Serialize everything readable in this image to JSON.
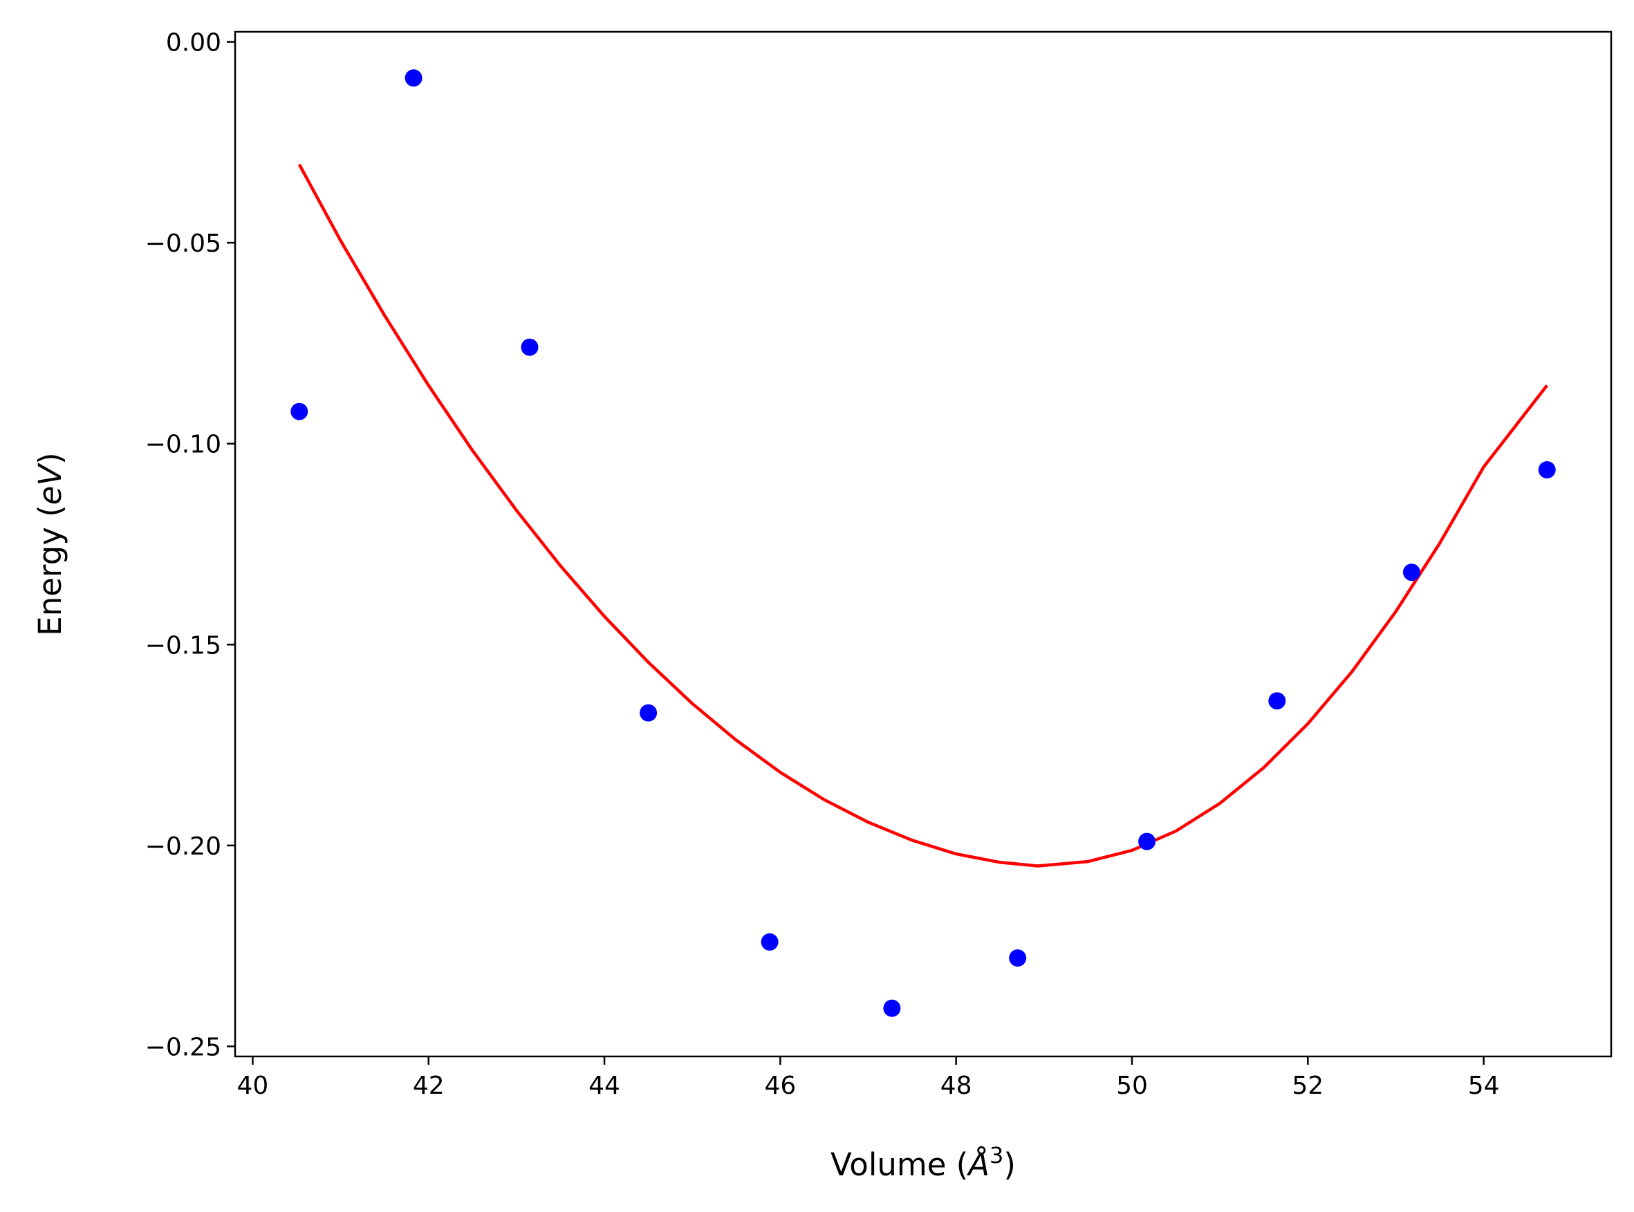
{
  "chart_data": {
    "type": "scatter",
    "title": "",
    "xlabel": {
      "prefix": "Volume (",
      "unit": "Å",
      "exponent": "3",
      "suffix": ")"
    },
    "ylabel": {
      "prefix": "Energy (",
      "unit": "eV",
      "suffix": ")"
    },
    "xlim": [
      39.8,
      55.45
    ],
    "ylim": [
      -0.2525,
      0.0025
    ],
    "xticks": [
      40,
      42,
      44,
      46,
      48,
      50,
      52,
      54
    ],
    "xtick_labels": [
      "40",
      "42",
      "44",
      "46",
      "48",
      "50",
      "52",
      "54"
    ],
    "yticks": [
      0.0,
      -0.05,
      -0.1,
      -0.15,
      -0.2,
      -0.25
    ],
    "ytick_labels": [
      "0.00",
      "−0.05",
      "−0.10",
      "−0.15",
      "−0.20",
      "−0.25"
    ],
    "grid": false,
    "legend": "none",
    "colors": {
      "points": "#0000ff",
      "fit": "#ff0000"
    },
    "series": [
      {
        "kind": "scatter",
        "x": [
          40.53,
          41.83,
          43.15,
          44.5,
          45.88,
          47.27,
          48.7,
          50.17,
          51.65,
          53.18,
          54.72
        ],
        "y": [
          -0.092,
          -0.009,
          -0.076,
          -0.167,
          -0.224,
          -0.2405,
          -0.228,
          -0.199,
          -0.164,
          -0.132,
          -0.1065
        ]
      },
      {
        "kind": "line",
        "x": [
          40.53,
          41.0,
          41.5,
          42.0,
          42.5,
          43.0,
          43.5,
          44.0,
          44.5,
          45.0,
          45.5,
          46.0,
          46.5,
          47.0,
          47.5,
          48.0,
          48.5,
          48.93,
          49.5,
          50.0,
          50.5,
          51.0,
          51.5,
          52.0,
          52.5,
          53.0,
          53.5,
          54.0,
          54.72
        ],
        "y": [
          -0.0305,
          -0.0495,
          -0.0681,
          -0.0855,
          -0.1017,
          -0.1166,
          -0.1304,
          -0.143,
          -0.1544,
          -0.1647,
          -0.1738,
          -0.1818,
          -0.1886,
          -0.1942,
          -0.1987,
          -0.2021,
          -0.2042,
          -0.2051,
          -0.204,
          -0.2012,
          -0.1964,
          -0.1895,
          -0.1806,
          -0.1697,
          -0.1568,
          -0.1418,
          -0.1248,
          -0.1058,
          -0.0855
        ]
      }
    ]
  }
}
